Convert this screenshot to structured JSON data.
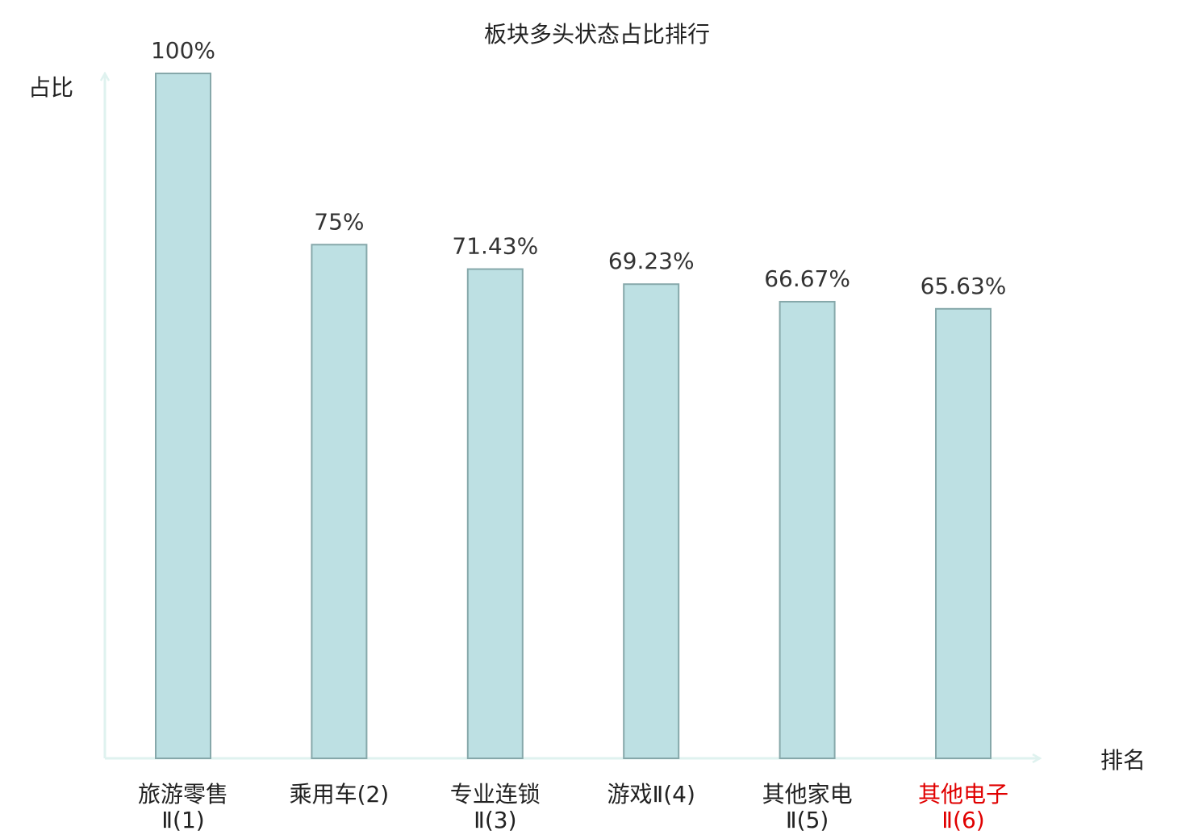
{
  "chart_data": {
    "type": "bar",
    "title": "板块多头状态占比排行",
    "ylabel": "占比",
    "xlabel": "排名",
    "ylim": [
      0,
      100
    ],
    "grid": false,
    "categories": [
      {
        "line1": "旅游零售",
        "line2": "Ⅱ(1)"
      },
      {
        "line1": "乘用车(2)",
        "line2": ""
      },
      {
        "line1": "专业连锁",
        "line2": "Ⅱ(3)"
      },
      {
        "line1": "游戏Ⅱ(4)",
        "line2": ""
      },
      {
        "line1": "其他家电",
        "line2": "Ⅱ(5)"
      },
      {
        "line1": "其他电子",
        "line2": "Ⅱ(6)"
      }
    ],
    "values": [
      100,
      75,
      71.43,
      69.23,
      66.67,
      65.63
    ],
    "value_labels": [
      "100%",
      "75%",
      "71.43%",
      "69.23%",
      "66.67%",
      "65.63%"
    ],
    "highlight_index": 5,
    "colors": {
      "bar_fill": "#bde0e3",
      "bar_stroke": "#86a8aa",
      "axis": "#dff2ef",
      "highlight_text": "#e00000",
      "text": "#222222"
    }
  }
}
